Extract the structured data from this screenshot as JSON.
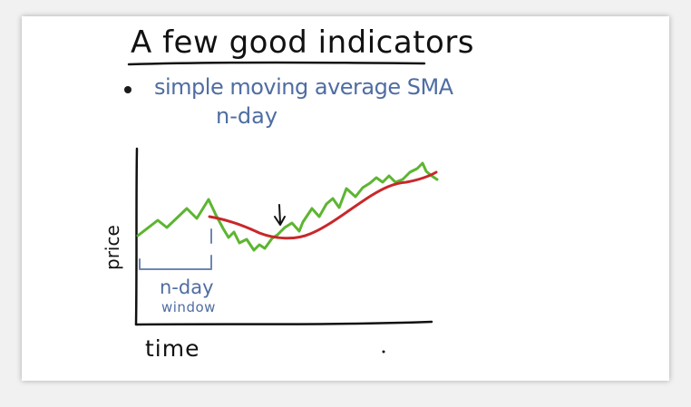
{
  "title": "A few good indicators",
  "bullet": {
    "text": "simple moving average SMA",
    "sub": "n-day"
  },
  "chart": {
    "ylabel": "price",
    "xlabel": "time",
    "window_label_line1": "n-day",
    "window_label_line2": "window"
  },
  "colors": {
    "ink": "#111111",
    "blue_text": "#4f6da2",
    "price_line": "#5db531",
    "sma_line": "#c8282b",
    "window_bracket": "#6d87b4"
  }
}
